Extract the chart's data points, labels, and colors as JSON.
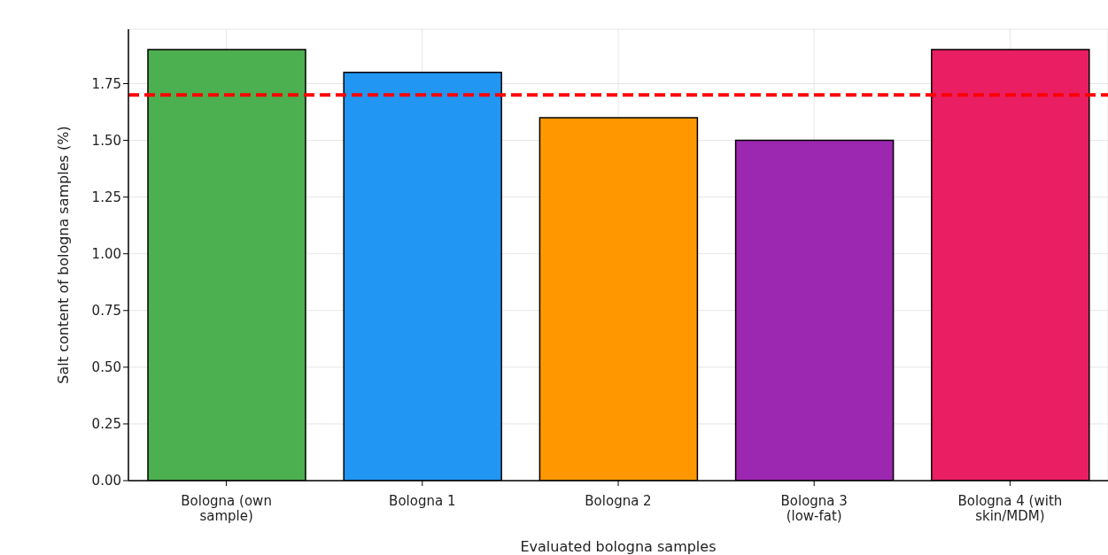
{
  "chart_data": {
    "type": "bar",
    "xlabel": "Evaluated bologna samples",
    "ylabel": "Salt content of bologna samples (%)",
    "categories": [
      "Bologna (own sample)",
      "Bologna 1",
      "Bologna 2",
      "Bologna 3 (low-fat)",
      "Bologna 4 (with skin/MDM)"
    ],
    "values": [
      1.9,
      1.8,
      1.6,
      1.5,
      1.9
    ],
    "colors": [
      "#4caf50",
      "#2196f3",
      "#ff9800",
      "#9c27b0",
      "#e91e63"
    ],
    "ylim": [
      0,
      1.99
    ],
    "yticks": [
      {
        "value": 0,
        "label": "0.00"
      },
      {
        "value": 0.25,
        "label": "0.25"
      },
      {
        "value": 0.5,
        "label": "0.50"
      },
      {
        "value": 0.75,
        "label": "0.75"
      },
      {
        "value": 1,
        "label": "1.00"
      },
      {
        "value": 1.25,
        "label": "1.25"
      },
      {
        "value": 1.5,
        "label": "1.50"
      },
      {
        "value": 1.75,
        "label": "1.75"
      }
    ],
    "grid": true,
    "ref_lines": [
      {
        "axis": "y",
        "value": 1.7,
        "color": "#ff0000",
        "line_style": "dashed"
      }
    ]
  }
}
